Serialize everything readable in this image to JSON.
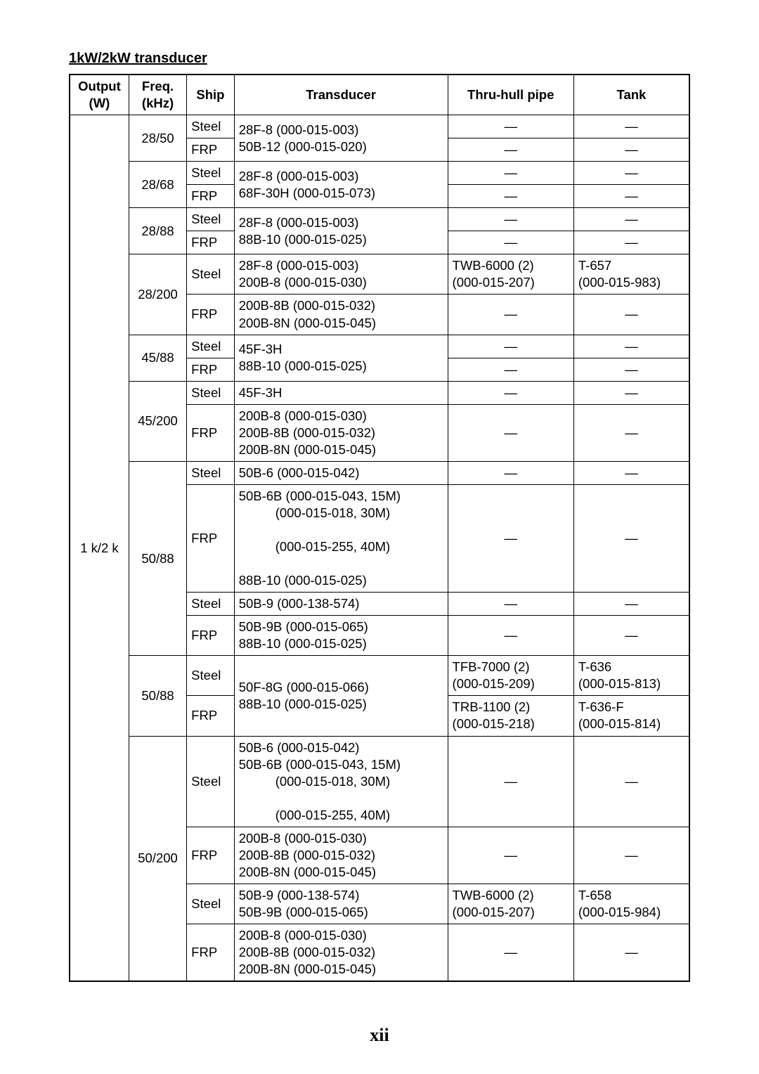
{
  "title": "1kW/2kW transducer",
  "page_number": "xii",
  "columns": [
    "Output (W)",
    "Freq. (kHz)",
    "Ship",
    "Transducer",
    "Thru-hull pipe",
    "Tank"
  ],
  "output_label": "1 k/2 k",
  "freq_groups": [
    {
      "freq": "28/50",
      "ship_rows": [
        {
          "ship": "Steel",
          "pipe": "—",
          "tank": "—",
          "td_merge": true
        },
        {
          "ship": "FRP",
          "pipe": "—",
          "tank": "—"
        }
      ],
      "transducer": "28F-8 (000-015-003)\n50B-12 (000-015-020)"
    },
    {
      "freq": "28/68",
      "ship_rows": [
        {
          "ship": "Steel",
          "pipe": "—",
          "tank": "—",
          "td_merge": true
        },
        {
          "ship": "FRP",
          "pipe": "—",
          "tank": "—"
        }
      ],
      "transducer": "28F-8 (000-015-003)\n68F-30H (000-015-073)"
    },
    {
      "freq": "28/88",
      "ship_rows": [
        {
          "ship": "Steel",
          "pipe": "—",
          "tank": "—",
          "td_merge": true
        },
        {
          "ship": "FRP",
          "pipe": "—",
          "tank": "—"
        }
      ],
      "transducer": "28F-8 (000-015-003)\n88B-10 (000-015-025)"
    },
    {
      "freq": "28/200",
      "ship_rows": [
        {
          "ship": "Steel",
          "pipe": "TWB-6000 (2)\n(000-015-207)",
          "tank": "T-657\n(000-015-983)",
          "transducer": "28F-8 (000-015-003)\n200B-8 (000-015-030)"
        },
        {
          "ship": "FRP",
          "pipe": "—",
          "tank": "—",
          "transducer": "200B-8B (000-015-032)\n200B-8N (000-015-045)"
        }
      ]
    },
    {
      "freq": "45/88",
      "ship_rows": [
        {
          "ship": "Steel",
          "pipe": "—",
          "tank": "—",
          "td_merge": true
        },
        {
          "ship": "FRP",
          "pipe": "—",
          "tank": "—"
        }
      ],
      "transducer": "45F-3H\n88B-10 (000-015-025)"
    },
    {
      "freq": "45/200",
      "ship_rows": [
        {
          "ship": "Steel",
          "pipe": "—",
          "tank": "—",
          "transducer": "45F-3H"
        },
        {
          "ship": "FRP",
          "pipe": "—",
          "tank": "—",
          "transducer": "200B-8 (000-015-030)\n200B-8B (000-015-032)\n200B-8N (000-015-045)"
        }
      ]
    },
    {
      "freq": "50/88",
      "ship_rows": [
        {
          "ship": "Steel",
          "pipe": "—",
          "tank": "—",
          "transducer": "50B-6 (000-015-042)"
        },
        {
          "ship": "FRP",
          "pipe": "—",
          "tank": "—",
          "transducer": "50B-6B (000-015-043, 15M)\n            (000-015-018, 30M)\n            (000-015-255, 40M)\n88B-10 (000-015-025)"
        },
        {
          "ship": "Steel",
          "pipe": "—",
          "tank": "—",
          "transducer": "50B-9 (000-138-574)"
        },
        {
          "ship": "FRP",
          "pipe": "—",
          "tank": "—",
          "transducer": "50B-9B (000-015-065)\n88B-10 (000-015-025)"
        }
      ]
    },
    {
      "freq": "50/88",
      "ship_rows": [
        {
          "ship": "Steel",
          "pipe": "TFB-7000 (2)\n(000-015-209)",
          "tank": "T-636\n(000-015-813)",
          "td_merge": true
        },
        {
          "ship": "FRP",
          "pipe": "TRB-1100 (2)\n(000-015-218)",
          "tank": "T-636-F\n(000-015-814)"
        }
      ],
      "transducer": "50F-8G (000-015-066)\n88B-10 (000-015-025)"
    },
    {
      "freq": "50/200",
      "ship_rows": [
        {
          "ship": "Steel",
          "pipe": "—",
          "tank": "—",
          "transducer": "50B-6 (000-015-042)\n50B-6B (000-015-043, 15M)\n            (000-015-018, 30M)\n            (000-015-255, 40M)"
        },
        {
          "ship": "FRP",
          "pipe": "—",
          "tank": "—",
          "transducer": "200B-8 (000-015-030)\n200B-8B (000-015-032)\n200B-8N (000-015-045)"
        },
        {
          "ship": "Steel",
          "pipe": "TWB-6000 (2)\n(000-015-207)",
          "tank": "T-658\n(000-015-984)",
          "transducer": "50B-9 (000-138-574)\n50B-9B (000-015-065)"
        },
        {
          "ship": "FRP",
          "pipe": "—",
          "tank": "—",
          "transducer": "200B-8 (000-015-030)\n200B-8B (000-015-032)\n200B-8N (000-015-045)"
        }
      ]
    }
  ]
}
